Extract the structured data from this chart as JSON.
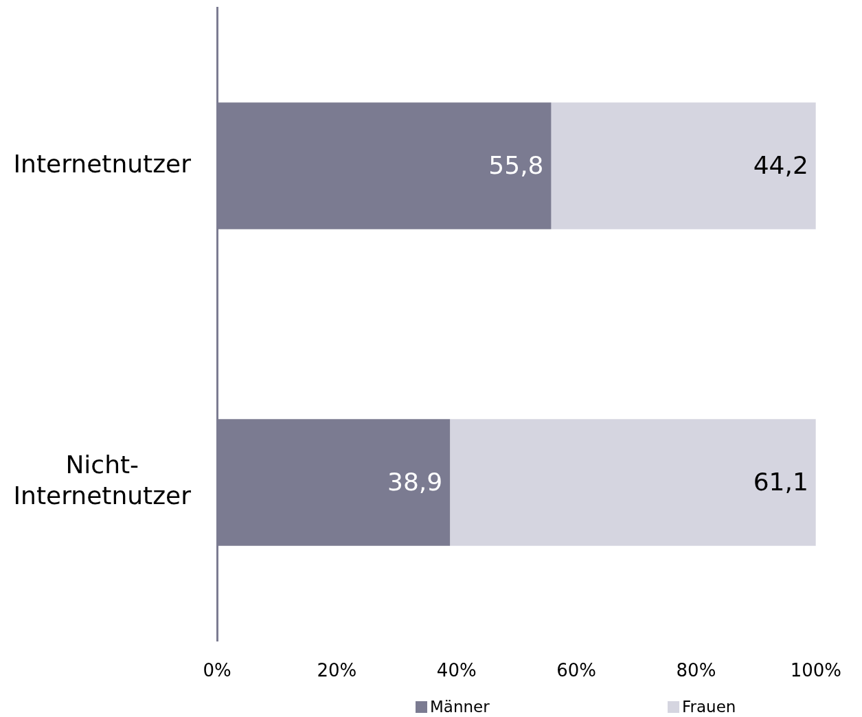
{
  "chart_data": {
    "type": "bar",
    "orientation": "horizontal",
    "stacked": true,
    "categories": [
      "Internetnutzer",
      "Nicht-Internetnutzer"
    ],
    "series": [
      {
        "name": "Männer",
        "color": "#7b7b91",
        "values": [
          55.8,
          38.9
        ],
        "value_labels": [
          "55,8",
          "38,9"
        ]
      },
      {
        "name": "Frauen",
        "color": "#d5d5e0",
        "values": [
          44.2,
          61.1
        ],
        "value_labels": [
          "44,2",
          "61,1"
        ]
      }
    ],
    "xlim": [
      0,
      100
    ],
    "xticks": [
      {
        "value": 0,
        "label": "0%"
      },
      {
        "value": 20,
        "label": "20%"
      },
      {
        "value": 40,
        "label": "40%"
      },
      {
        "value": 60,
        "label": "60%"
      },
      {
        "value": 80,
        "label": "80%"
      },
      {
        "value": 100,
        "label": "100%"
      }
    ],
    "legend": "bottom",
    "grid": false
  }
}
